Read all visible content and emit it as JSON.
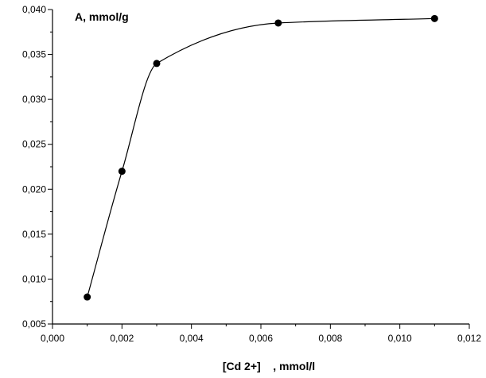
{
  "chart_data": {
    "type": "scatter",
    "title": "",
    "ylabel": "A, mmol/g",
    "xlabel": "[Cd 2+]    , mmol/l",
    "xlim": [
      0.0,
      0.012
    ],
    "ylim": [
      0.005,
      0.04
    ],
    "x_ticks": [
      "0,000",
      "0,002",
      "0,004",
      "0,006",
      "0,008",
      "0,010",
      "0,012"
    ],
    "y_ticks": [
      "0,005",
      "0,010",
      "0,015",
      "0,020",
      "0,025",
      "0,030",
      "0,035",
      "0,040"
    ],
    "grid": false,
    "legend": "none",
    "fit_line": "smooth curve through points",
    "series": [
      {
        "x": [
          0.001,
          0.002,
          0.003,
          0.0065,
          0.011
        ],
        "y": [
          0.008,
          0.022,
          0.034,
          0.0385,
          0.039
        ]
      }
    ],
    "colors": {
      "marker": "#000000",
      "line": "#000000"
    }
  }
}
